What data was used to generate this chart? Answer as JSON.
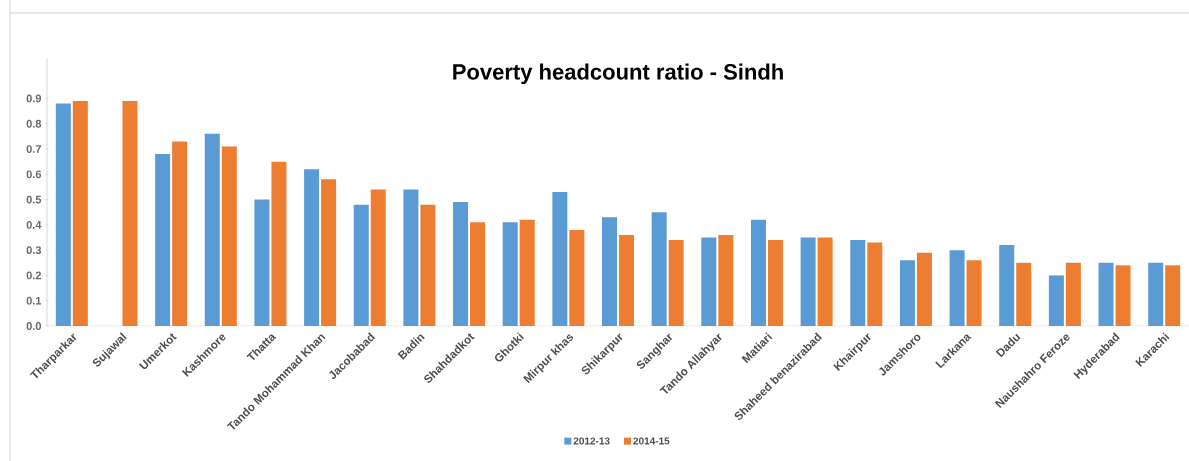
{
  "chart_data": {
    "type": "bar",
    "title": "Poverty headcount ratio - Sindh",
    "categories": [
      "Tharparkar",
      "Sujawal",
      "Umerkot",
      "Kashmore",
      "Thatta",
      "Tando Mohammad Khan",
      "Jacobabad",
      "Badin",
      "Shahdadkot",
      "Ghotki",
      "Mirpur khas",
      "Shikarpur",
      "Sanghar",
      "Tando Allahyar",
      "Matiari",
      "Shaheed benazirabad",
      "Khairpur",
      "Jamshoro",
      "Larkana",
      "Dadu",
      "Naushahro Feroze",
      "Hyderabad",
      "Karachi"
    ],
    "series": [
      {
        "name": "2012-13",
        "color": "#5b9bd5",
        "values": [
          0.88,
          null,
          0.68,
          0.76,
          0.5,
          0.62,
          0.48,
          0.54,
          0.49,
          0.41,
          0.53,
          0.43,
          0.45,
          0.35,
          0.42,
          0.35,
          0.34,
          0.26,
          0.3,
          0.32,
          0.2,
          0.25,
          0.25
        ]
      },
      {
        "name": "2014-15",
        "color": "#ed7d31",
        "values": [
          0.89,
          0.89,
          0.73,
          0.71,
          0.65,
          0.58,
          0.54,
          0.48,
          0.41,
          0.42,
          0.38,
          0.36,
          0.34,
          0.36,
          0.34,
          0.35,
          0.33,
          0.29,
          0.26,
          0.25,
          0.25,
          0.24,
          0.24
        ]
      }
    ],
    "ylim": [
      0,
      1.06
    ],
    "yticks": [
      {
        "value": 0,
        "label": "0.0"
      },
      0.1,
      0.2,
      0.3,
      0.4,
      0.5,
      0.6,
      0.7,
      0.8,
      0.9
    ],
    "grid": false,
    "legend": "bottom"
  }
}
